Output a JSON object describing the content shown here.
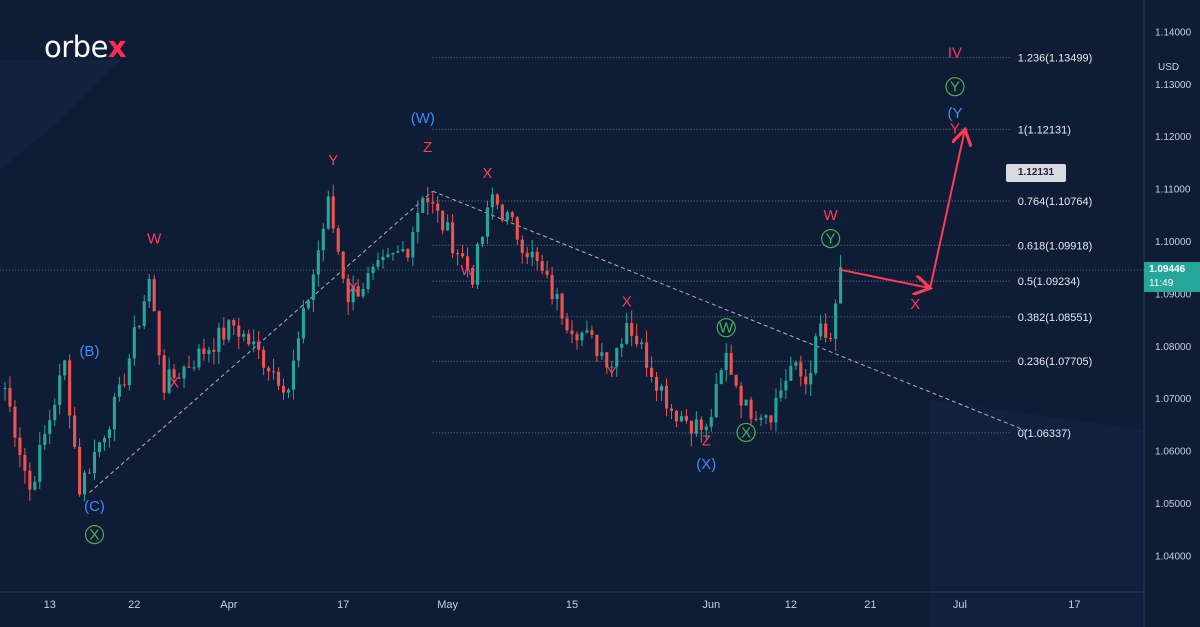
{
  "brand": {
    "wordmark_left": "orbe",
    "wordmark_accent": "x"
  },
  "currency_label": "USD",
  "current_price": {
    "value": "1.09446",
    "countdown": "11:49"
  },
  "target_callout": "1.12131",
  "colors": {
    "background": "#0f1c35",
    "candle_up": "#26a69a",
    "candle_down": "#ef5350",
    "red_label": "#ff3b57",
    "blue_label": "#3d8bff",
    "green_label": "#4caf50",
    "fib_line": "#6b7a96"
  },
  "chart_data": {
    "type": "candlestick",
    "instrument_currency": "USD",
    "ylim": [
      1.033,
      1.146
    ],
    "y_ticks": [
      "1.04000",
      "1.05000",
      "1.06000",
      "1.07000",
      "1.08000",
      "1.09000",
      "1.10000",
      "1.11000",
      "1.12000",
      "1.13000",
      "1.14000"
    ],
    "x_ticks": [
      {
        "label": "13",
        "bar": 8
      },
      {
        "label": "22",
        "bar": 25
      },
      {
        "label": "Apr",
        "bar": 44
      },
      {
        "label": "17",
        "bar": 67
      },
      {
        "label": "May",
        "bar": 88
      },
      {
        "label": "15",
        "bar": 113
      },
      {
        "label": "Jun",
        "bar": 141
      },
      {
        "label": "12",
        "bar": 157
      },
      {
        "label": "21",
        "bar": 173
      },
      {
        "label": "Jul",
        "bar": 191
      },
      {
        "label": "17",
        "bar": 214
      }
    ],
    "bar_span": [
      -2,
      228
    ],
    "pivots": [
      [
        -1,
        1.072
      ],
      [
        4,
        1.0525
      ],
      [
        11,
        1.0765
      ],
      [
        14,
        1.0528
      ],
      [
        22,
        1.0705
      ],
      [
        28,
        1.0925
      ],
      [
        31,
        1.0725
      ],
      [
        45,
        1.084
      ],
      [
        56,
        1.072
      ],
      [
        64,
        1.107
      ],
      [
        68,
        1.0895
      ],
      [
        80,
        1.099
      ],
      [
        83,
        1.1095
      ],
      [
        93,
        1.0935
      ],
      [
        97,
        1.1085
      ],
      [
        105,
        1.097
      ],
      [
        112,
        1.085
      ],
      [
        121,
        1.077
      ],
      [
        124,
        1.085
      ],
      [
        133,
        1.068
      ],
      [
        140,
        1.0635
      ],
      [
        144,
        1.078
      ],
      [
        148,
        1.068
      ],
      [
        153,
        1.0675
      ],
      [
        157,
        1.076
      ],
      [
        160,
        1.073
      ],
      [
        163,
        1.0835
      ],
      [
        165,
        1.0795
      ],
      [
        167,
        1.095
      ]
    ],
    "fibonacci": [
      {
        "label": "1.236(1.13499)",
        "price": 1.13499
      },
      {
        "label": "1(1.12131)",
        "price": 1.12131
      },
      {
        "label": "0.764(1.10764)",
        "price": 1.10764
      },
      {
        "label": "0.618(1.09918)",
        "price": 1.09918
      },
      {
        "label": "0.5(1.09234)",
        "price": 1.09234
      },
      {
        "label": "0.382(1.08551)",
        "price": 1.08551
      },
      {
        "label": "0.236(1.07705)",
        "price": 1.07705
      },
      {
        "label": "0(1.06337)",
        "price": 1.06337
      }
    ],
    "fib_range_bars": [
      85,
      201
    ],
    "trendlines": [
      {
        "from": [
          16,
          1.052
        ],
        "to": [
          85,
          1.1095
        ]
      },
      {
        "from": [
          85,
          1.1095
        ],
        "to": [
          205,
          1.0635
        ]
      }
    ],
    "forecast_path": [
      [
        167,
        1.0945
      ],
      [
        185,
        1.091
      ],
      [
        192,
        1.12131
      ]
    ],
    "wave_labels": [
      {
        "text": "(B)",
        "bar": 16,
        "price": 1.078,
        "color": "blue"
      },
      {
        "text": "(C)",
        "bar": 17,
        "price": 1.0485,
        "color": "blue"
      },
      {
        "text": "X",
        "bar": 17,
        "price": 1.043,
        "color": "green",
        "circled": true
      },
      {
        "text": "W",
        "bar": 29,
        "price": 1.0995,
        "color": "red"
      },
      {
        "text": "X",
        "bar": 33,
        "price": 1.072,
        "color": "red"
      },
      {
        "text": "Y",
        "bar": 65,
        "price": 1.1145,
        "color": "red"
      },
      {
        "text": "X",
        "bar": 69,
        "price": 1.0902,
        "color": "red"
      },
      {
        "text": "(W)",
        "bar": 83,
        "price": 1.1225,
        "color": "blue"
      },
      {
        "text": "Z",
        "bar": 84,
        "price": 1.117,
        "color": "red"
      },
      {
        "text": "X",
        "bar": 96,
        "price": 1.112,
        "color": "red"
      },
      {
        "text": "W",
        "bar": 92,
        "price": 1.0935,
        "color": "red"
      },
      {
        "text": "X",
        "bar": 124,
        "price": 1.0875,
        "color": "red"
      },
      {
        "text": "Y",
        "bar": 121,
        "price": 1.074,
        "color": "red"
      },
      {
        "text": "W",
        "bar": 144,
        "price": 1.0825,
        "color": "green",
        "circled": true
      },
      {
        "text": "Z",
        "bar": 140,
        "price": 1.061,
        "color": "red"
      },
      {
        "text": "(X)",
        "bar": 140,
        "price": 1.0565,
        "color": "blue"
      },
      {
        "text": "X",
        "bar": 148,
        "price": 1.0625,
        "color": "green",
        "circled": true
      },
      {
        "text": "W",
        "bar": 165,
        "price": 1.104,
        "color": "red"
      },
      {
        "text": "Y",
        "bar": 165,
        "price": 1.0995,
        "color": "green",
        "circled": true
      },
      {
        "text": "X",
        "bar": 182,
        "price": 1.087,
        "color": "red"
      },
      {
        "text": "IV",
        "bar": 190,
        "price": 1.135,
        "color": "red"
      },
      {
        "text": "Y",
        "bar": 190,
        "price": 1.1285,
        "color": "green",
        "circled": true
      },
      {
        "text": "(Y",
        "bar": 190,
        "price": 1.1235,
        "color": "blue"
      },
      {
        "text": "Y",
        "bar": 190,
        "price": 1.1205,
        "color": "red"
      }
    ]
  }
}
